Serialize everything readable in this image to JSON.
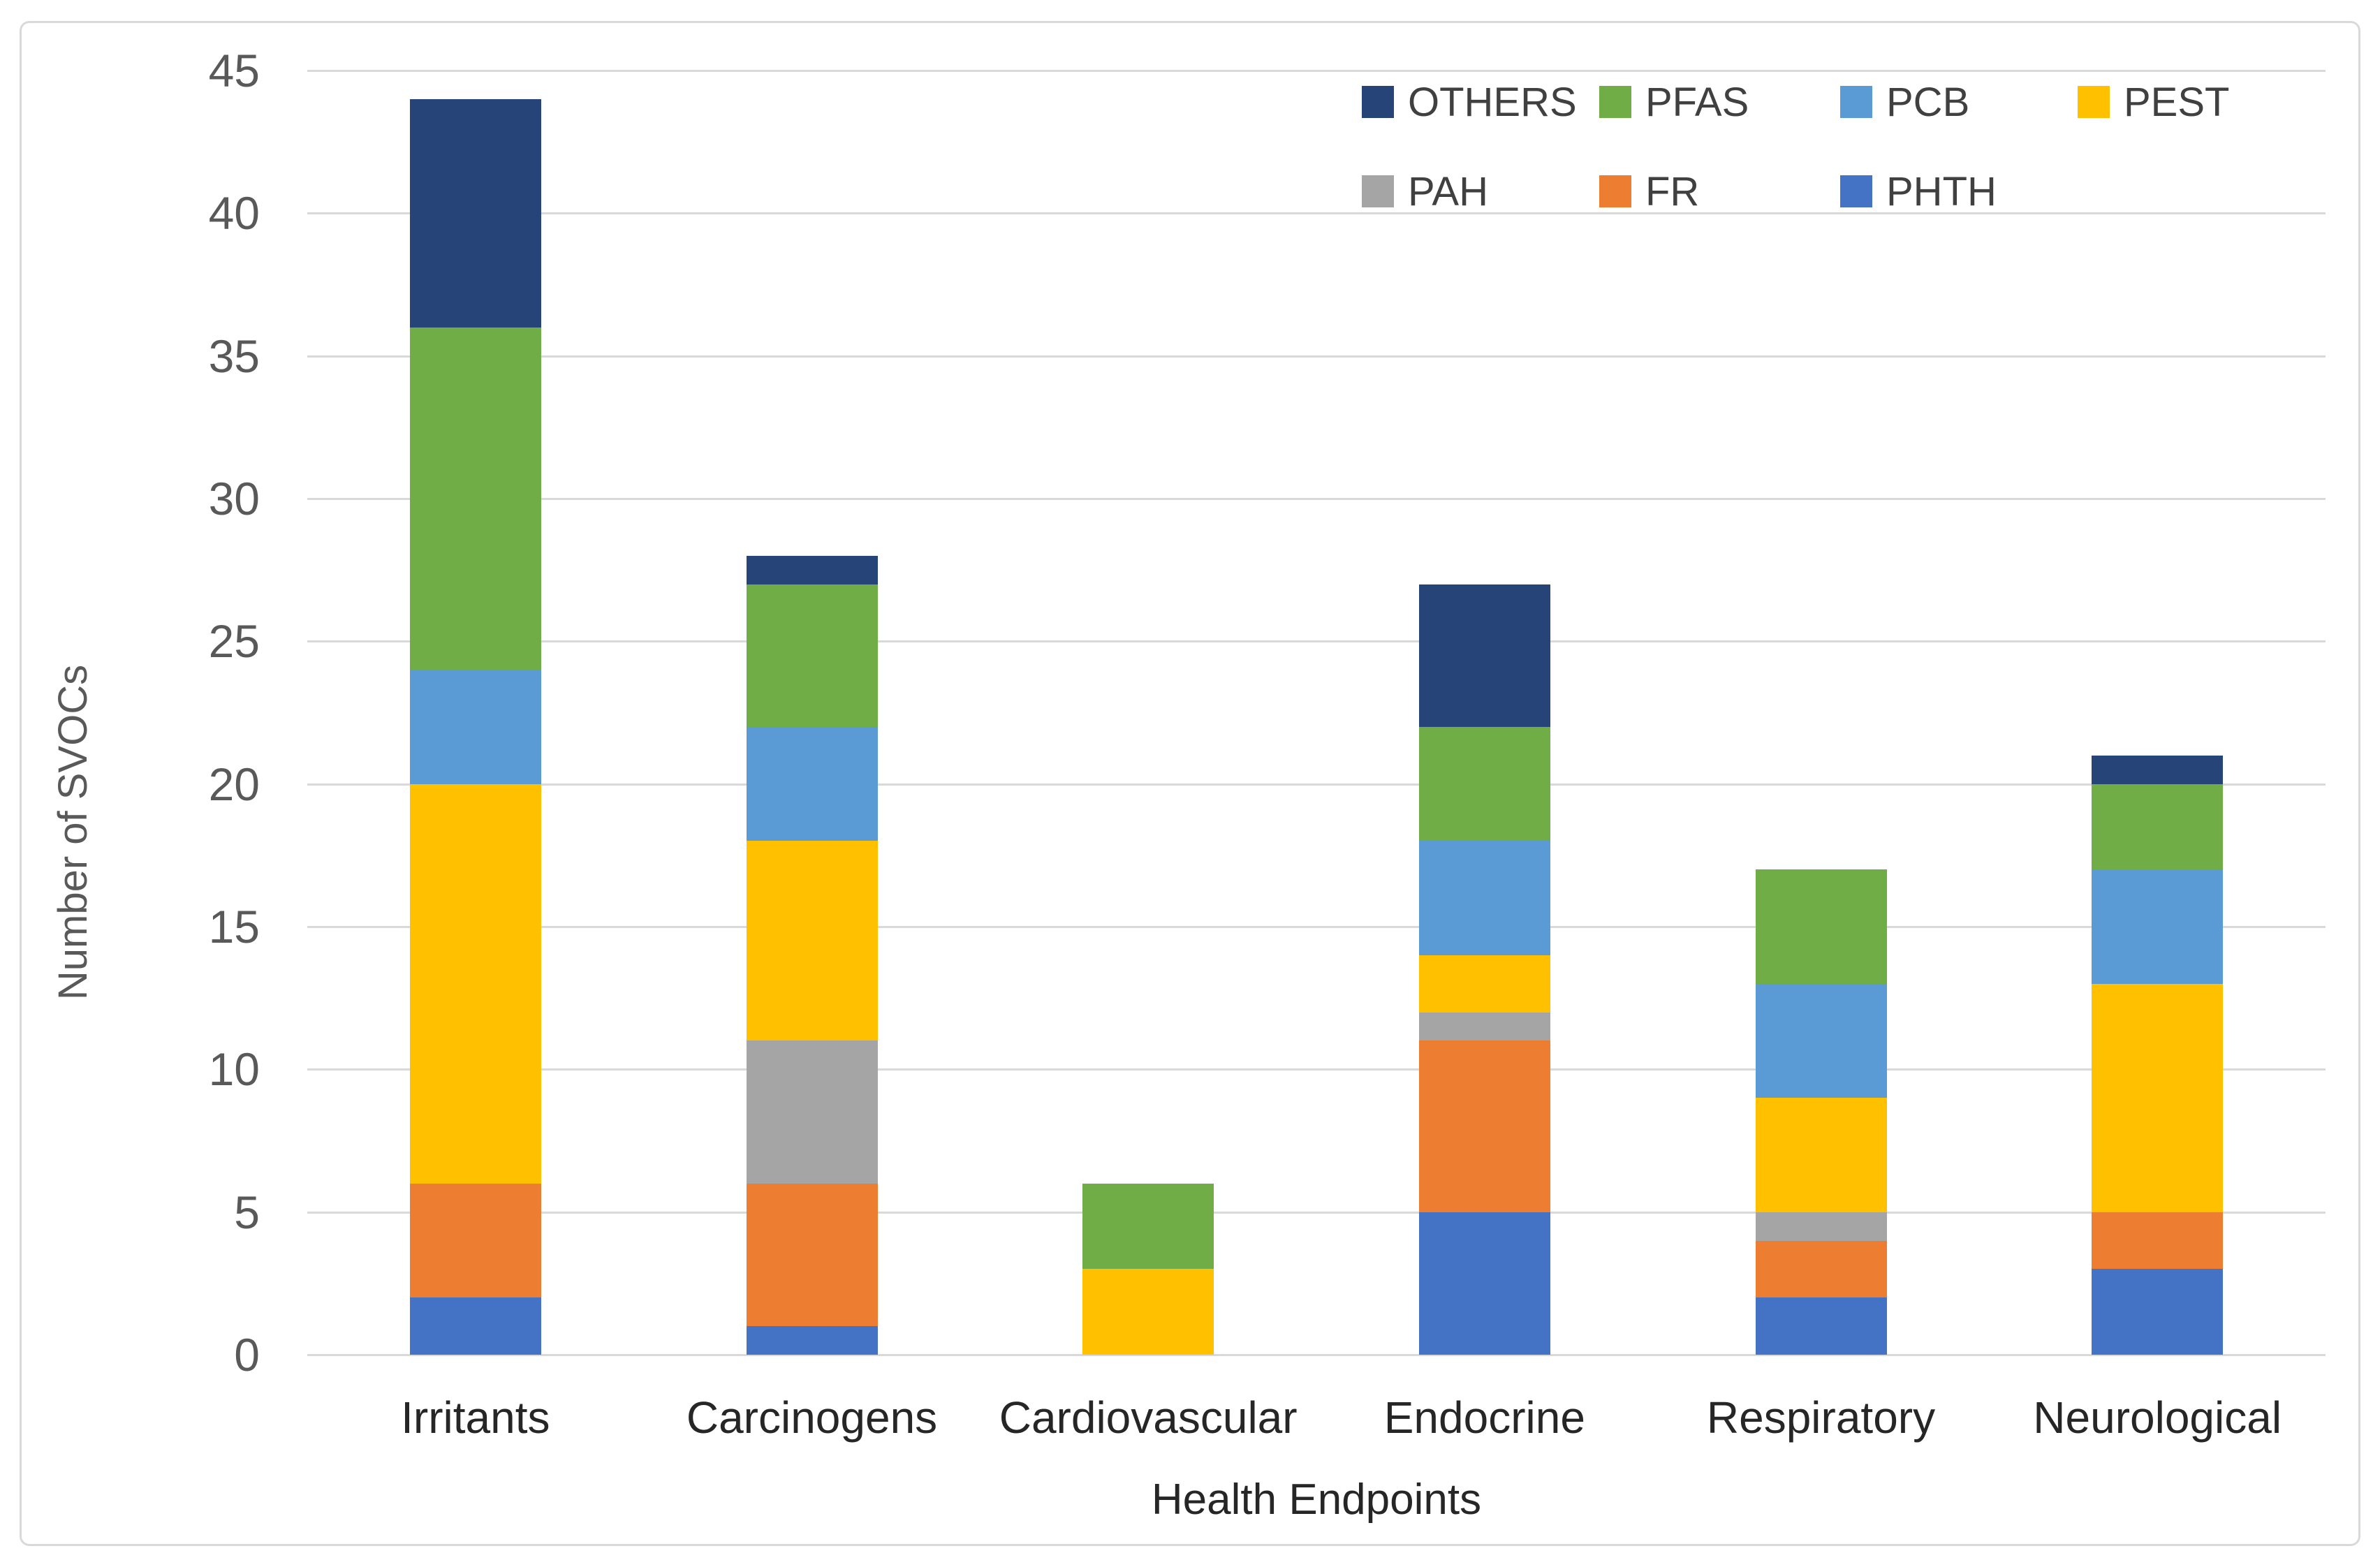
{
  "chart_data": {
    "type": "bar",
    "stacked": true,
    "title": "",
    "xlabel": "Health Endpoints",
    "ylabel": "Number of SVOCs",
    "ylim": [
      0,
      45
    ],
    "yticks": [
      0,
      5,
      10,
      15,
      20,
      25,
      30,
      35,
      40,
      45
    ],
    "grid": true,
    "legend_position": "top-right-inside",
    "categories": [
      "Irritants",
      "Carcinogens",
      "Cardiovascular",
      "Endocrine",
      "Respiratory",
      "Neurological"
    ],
    "series": [
      {
        "name": "PHTH",
        "color": "#4472C4",
        "values": [
          2,
          1,
          0,
          5,
          2,
          3
        ]
      },
      {
        "name": "FR",
        "color": "#ED7D31",
        "values": [
          4,
          5,
          0,
          6,
          2,
          2
        ]
      },
      {
        "name": "PAH",
        "color": "#A5A5A5",
        "values": [
          0,
          5,
          0,
          1,
          1,
          0
        ]
      },
      {
        "name": "PEST",
        "color": "#FFC000",
        "values": [
          14,
          7,
          3,
          2,
          4,
          8
        ]
      },
      {
        "name": "PCB",
        "color": "#5B9BD5",
        "values": [
          4,
          4,
          0,
          4,
          4,
          4
        ]
      },
      {
        "name": "PFAS",
        "color": "#70AD47",
        "values": [
          12,
          5,
          3,
          4,
          4,
          3
        ]
      },
      {
        "name": "OTHERS",
        "color": "#264478",
        "values": [
          8,
          1,
          0,
          5,
          0,
          1
        ]
      }
    ],
    "legend_rows": [
      [
        "OTHERS",
        "PFAS",
        "PCB",
        "PEST"
      ],
      [
        "PAH",
        "FR",
        "PHTH"
      ]
    ]
  },
  "styles": {
    "background": "#FFFFFF",
    "border_color": "#D9D9D9",
    "gridline_color": "#D9D9D9",
    "tick_text_color": "#595959",
    "category_text_color": "#262626",
    "legend_text_color": "#404040"
  }
}
